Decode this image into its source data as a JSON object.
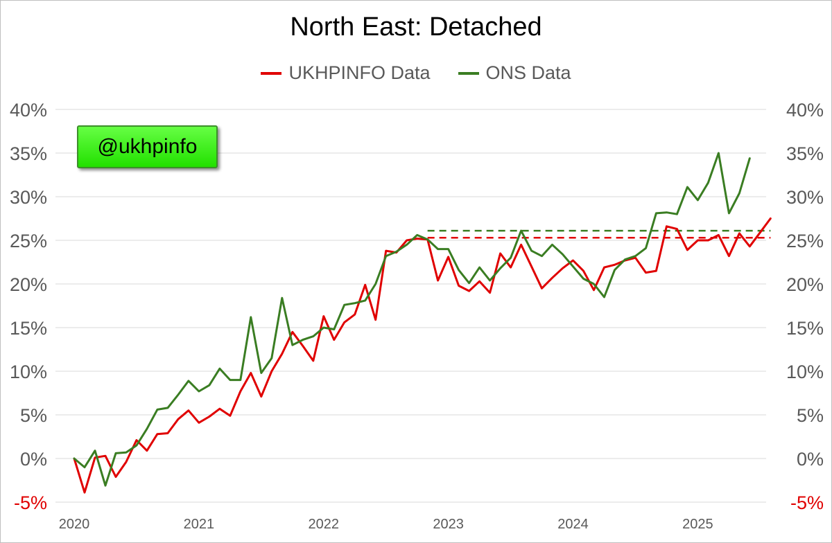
{
  "chart_data": {
    "type": "line",
    "title": "North East: Detached",
    "xlabel": "",
    "ylabel": "",
    "x_start": "2020-01",
    "x_ticks": [
      "2020",
      "2021",
      "2022",
      "2023",
      "2024",
      "2025"
    ],
    "y_ticks": [
      "-5%",
      "0%",
      "5%",
      "10%",
      "15%",
      "20%",
      "25%",
      "30%",
      "35%",
      "40%"
    ],
    "ylim": [
      -5,
      40
    ],
    "grid": "horizontal",
    "legend_position": "top",
    "series": [
      {
        "name": "UKHPINFO Data",
        "color": "#e00000",
        "values": [
          0,
          -3.9,
          0.1,
          0.3,
          -2.1,
          -0.4,
          2.1,
          0.9,
          2.8,
          2.9,
          4.5,
          5.5,
          4.1,
          4.8,
          5.7,
          4.9,
          7.7,
          9.8,
          7.1,
          10.0,
          12.0,
          14.5,
          12.9,
          11.2,
          16.3,
          13.6,
          15.6,
          16.5,
          19.9,
          15.9,
          23.8,
          23.6,
          25.0,
          25.2,
          25.1,
          20.4,
          23.1,
          19.8,
          19.2,
          20.3,
          19.0,
          23.5,
          21.9,
          24.5,
          22.0,
          19.5,
          20.7,
          21.8,
          22.7,
          21.5,
          19.3,
          21.9,
          22.2,
          22.7,
          23.0,
          21.3,
          21.5,
          26.6,
          26.3,
          23.9,
          25.0,
          25.0,
          25.6,
          23.2,
          25.8,
          24.3,
          25.9,
          27.5
        ],
        "dashed_level": 25.3
      },
      {
        "name": "ONS Data",
        "color": "#3a7d22",
        "values": [
          0,
          -1.0,
          0.9,
          -3.1,
          0.6,
          0.7,
          1.5,
          3.4,
          5.6,
          5.8,
          7.3,
          8.9,
          7.7,
          8.4,
          10.3,
          9.0,
          9.0,
          16.2,
          9.8,
          11.5,
          18.4,
          13.0,
          13.6,
          14.0,
          15.0,
          14.8,
          17.6,
          17.8,
          18.1,
          20.0,
          23.2,
          23.7,
          24.5,
          25.6,
          25.1,
          24.0,
          24.0,
          21.6,
          20.1,
          21.9,
          20.4,
          21.8,
          23.0,
          26.1,
          23.8,
          23.2,
          24.5,
          23.4,
          22.0,
          20.6,
          20.0,
          18.5,
          21.6,
          22.8,
          23.2,
          24.1,
          28.1,
          28.2,
          28.0,
          31.1,
          29.6,
          31.6,
          35.0,
          28.1,
          30.4,
          34.4
        ],
        "dashed_level": 26.1
      }
    ]
  },
  "badge": "@ukhpinfo",
  "colors": {
    "ukhpinfo": "#e00000",
    "ons": "#3a7d22",
    "grid": "#d9d9d9",
    "badge": "#33ee11"
  }
}
